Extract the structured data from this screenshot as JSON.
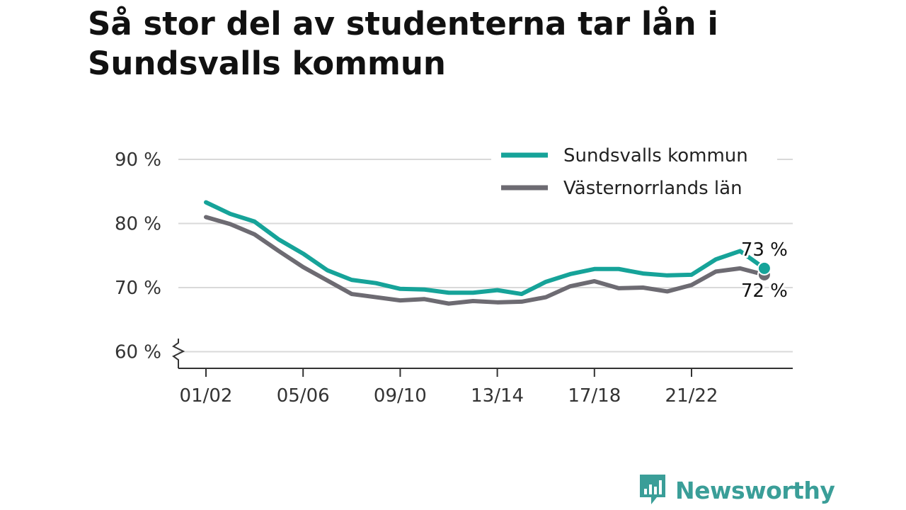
{
  "chart_data": {
    "type": "line",
    "title": "Så stor del av studenterna tar lån i Sundsvalls kommun",
    "x": [
      "01/02",
      "02/03",
      "03/04",
      "04/05",
      "05/06",
      "06/07",
      "07/08",
      "08/09",
      "09/10",
      "10/11",
      "11/12",
      "12/13",
      "13/14",
      "14/15",
      "15/16",
      "16/17",
      "17/18",
      "18/19",
      "19/20",
      "20/21",
      "21/22",
      "22/23",
      "23/24",
      "24/25"
    ],
    "x_tick_labels": [
      "01/02",
      "05/06",
      "09/10",
      "13/14",
      "17/18",
      "21/22"
    ],
    "y_ticks": [
      60,
      70,
      80,
      90
    ],
    "y_tick_labels": [
      "60 %",
      "70 %",
      "80 %",
      "90 %"
    ],
    "ylim": [
      59,
      93
    ],
    "grid": true,
    "legend": "top-right",
    "series": [
      {
        "name": "Sundsvalls kommun",
        "color": "#16a399",
        "values": [
          83.3,
          81.5,
          80.3,
          77.5,
          75.3,
          72.7,
          71.2,
          70.7,
          69.8,
          69.7,
          69.2,
          69.2,
          69.6,
          69.0,
          70.9,
          72.1,
          72.9,
          72.9,
          72.2,
          71.9,
          72.0,
          74.4,
          75.7,
          73.0
        ],
        "end_label": "73 %"
      },
      {
        "name": "Västernorrlands län",
        "color": "#6d6b72",
        "values": [
          81.0,
          79.9,
          78.3,
          75.7,
          73.2,
          71.1,
          69.0,
          68.5,
          68.0,
          68.2,
          67.5,
          67.9,
          67.7,
          67.8,
          68.5,
          70.2,
          71.0,
          69.9,
          70.0,
          69.4,
          70.4,
          72.5,
          73.0,
          72.0
        ],
        "end_label": "72 %"
      }
    ]
  },
  "branding": {
    "logo_text": "Newsworthy",
    "logo_icon": "bar-chart-speech-bubble-icon"
  }
}
